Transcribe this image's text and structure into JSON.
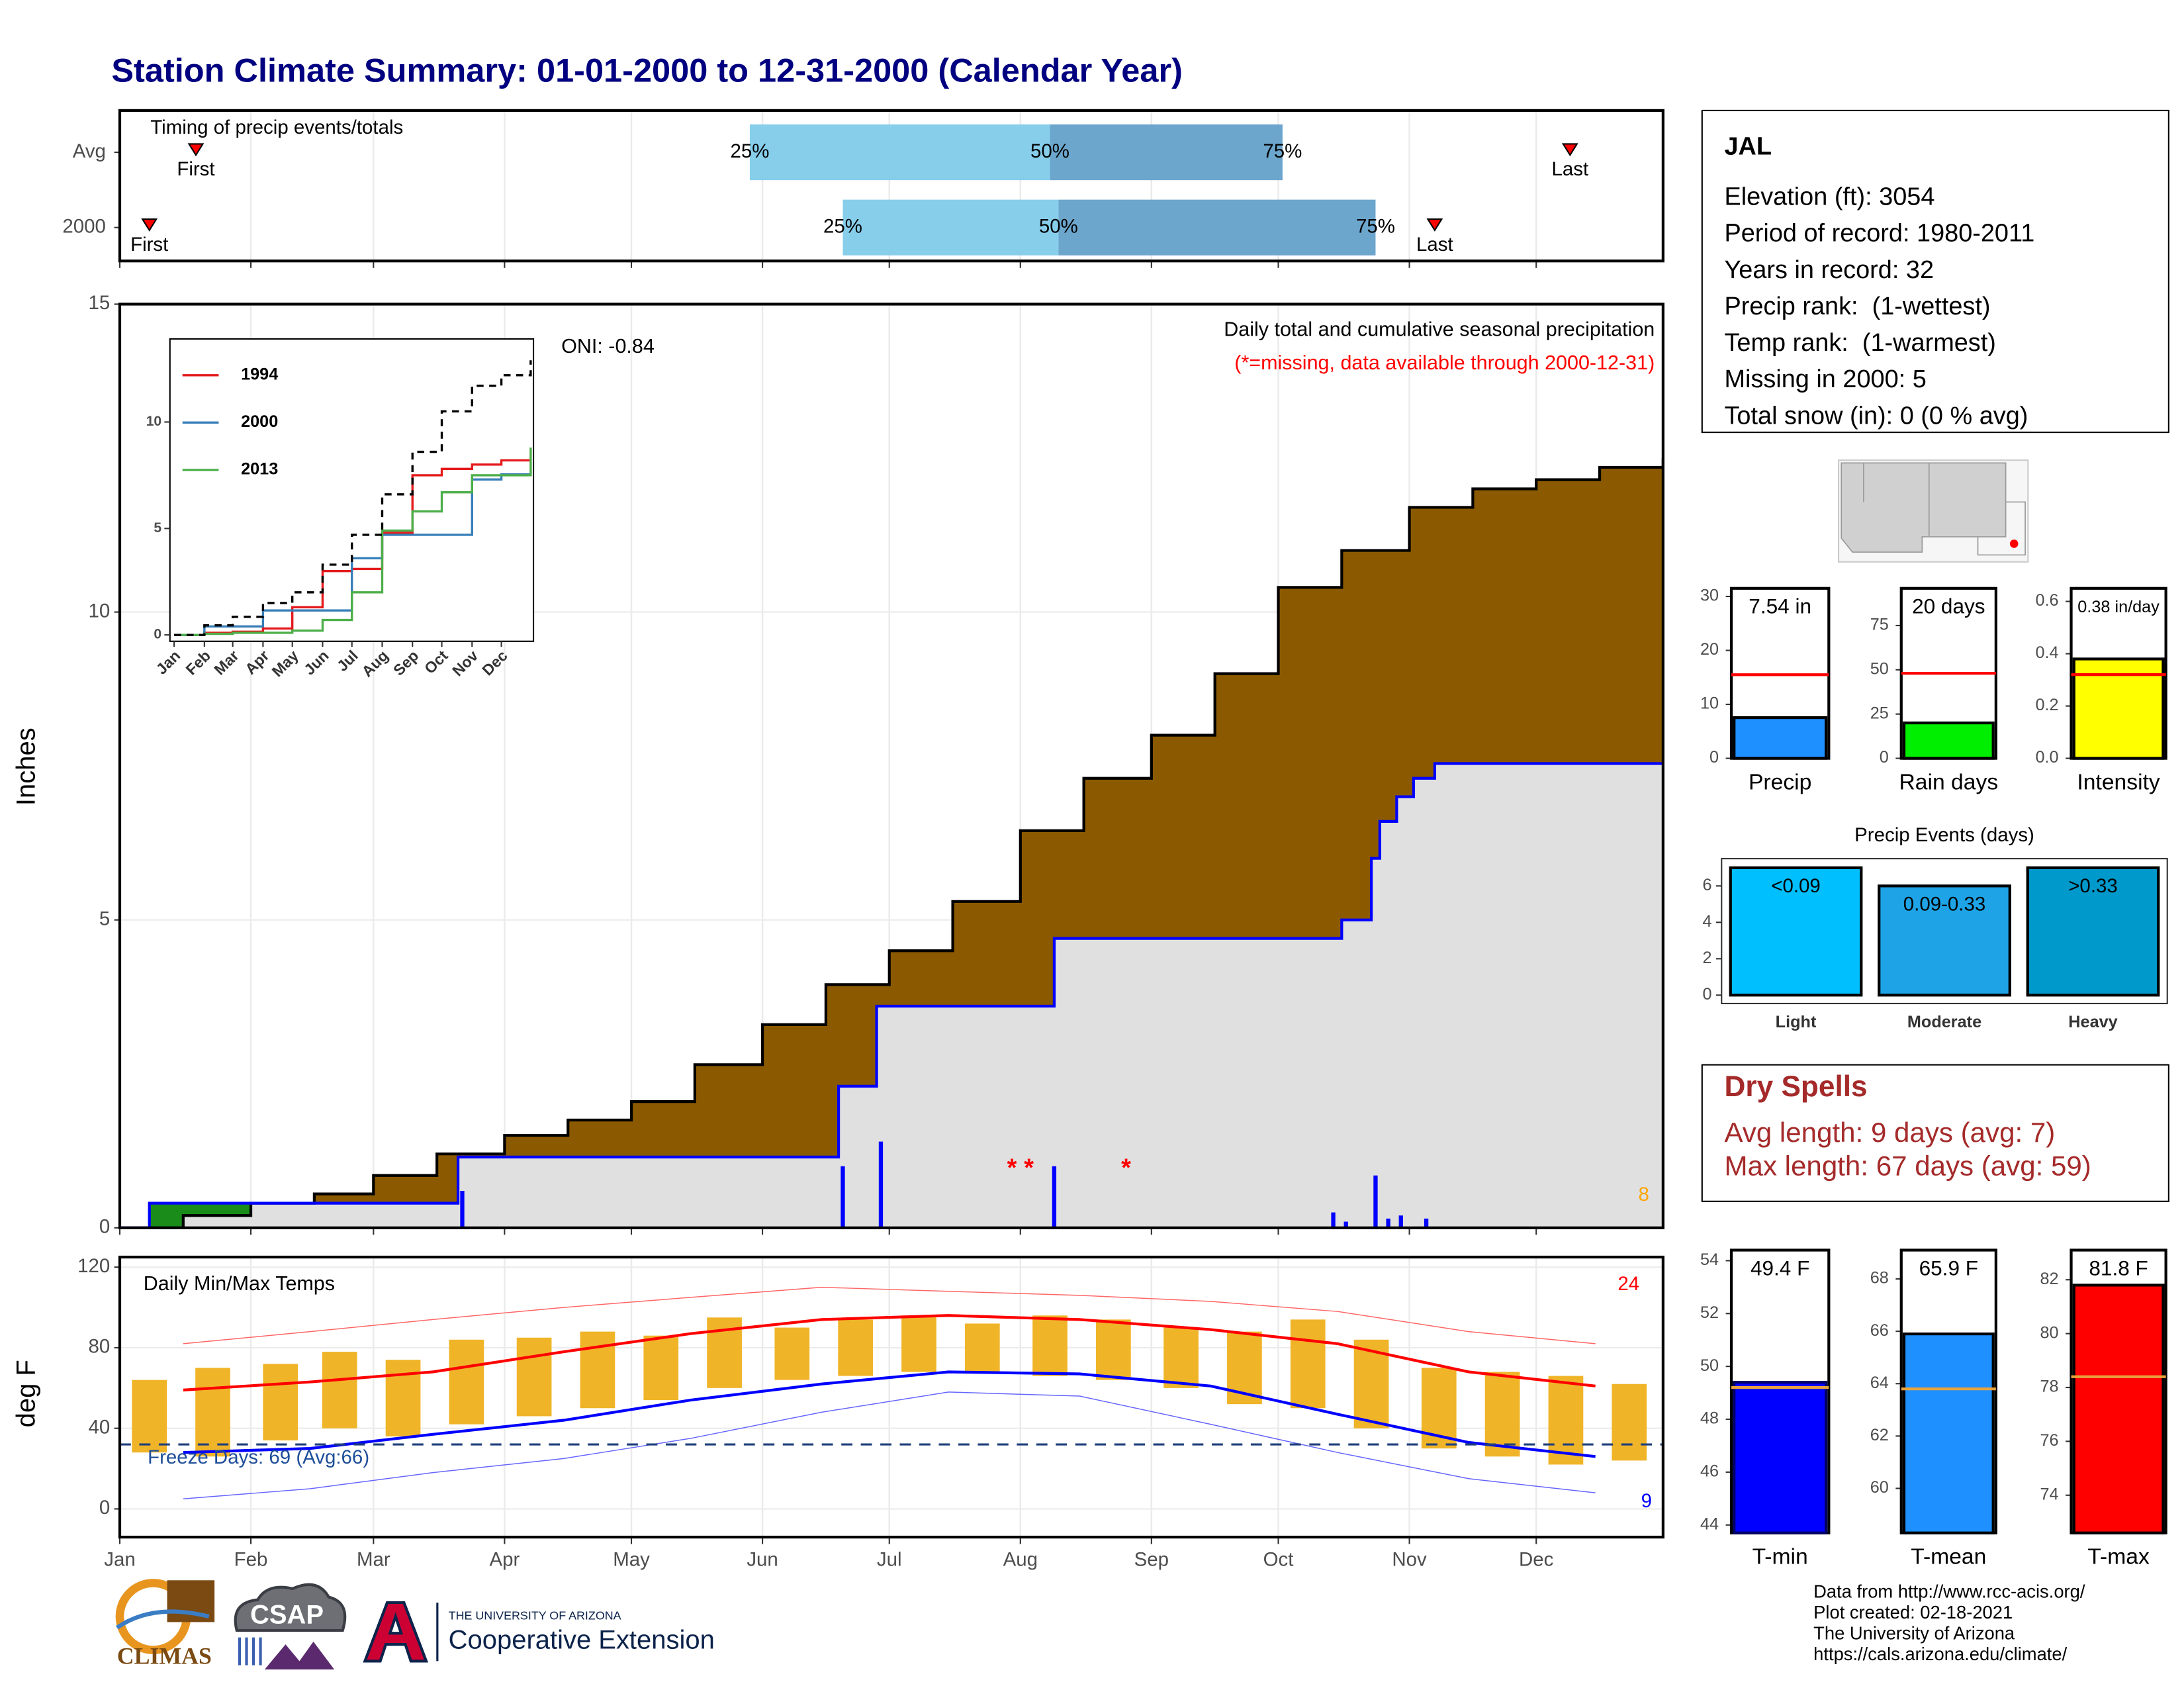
{
  "title": "Station Climate Summary: 01-01-2000 to 12-31-2000 (Calendar Year)",
  "station": {
    "name": "JAL",
    "details": [
      "Elevation (ft): 3054",
      "Period of record: 1980-2011",
      "Years in record: 32",
      "Precip rank:  (1-wettest)",
      "Temp rank:  (1-warmest)",
      "Missing in 2000: 5",
      "Total snow (in): 0 (0 % avg)"
    ]
  },
  "dry_spells": {
    "title": "Dry Spells",
    "lines": [
      "Avg length: 9 days (avg: 7)",
      "Max length: 67 days (avg: 59)"
    ]
  },
  "footer": [
    "Data from http://www.rcc-acis.org/",
    "Plot created: 02-18-2021",
    "The University of Arizona",
    "https://cals.arizona.edu/climate/"
  ],
  "logos": {
    "climas": "CLIMAS",
    "csap": "CSAP",
    "university": "THE UNIVERSITY OF ARIZONA",
    "extension": "Cooperative Extension"
  },
  "chart_data": [
    {
      "type": "timing",
      "title": "Timing of precip events/totals",
      "xlim": [
        0,
        365
      ],
      "xticks": [
        0,
        31,
        60,
        91,
        121,
        152,
        182,
        213,
        244,
        274,
        305,
        335
      ],
      "grid": true,
      "marker_labels": {
        "first": "First",
        "last": "Last",
        "q25": "25%",
        "q50": "50%",
        "q75": "75%"
      },
      "colors": [
        "#87ceeb",
        "#6ca6cd"
      ],
      "rows": [
        {
          "name": "Avg",
          "first": 18,
          "q25": 149,
          "q50": 220,
          "q75": 275,
          "last": 343
        },
        {
          "name": "2000",
          "first": 7,
          "q25": 171,
          "q50": 222,
          "q75": 297,
          "last": 311
        }
      ]
    },
    {
      "type": "cumulative",
      "title": "Daily total and cumulative seasonal precipitation",
      "subtitle": "(*=missing, data available through 2000-12-31)",
      "annotation": "ONI: -0.84",
      "corner_label": "8",
      "ylabel": "Inches",
      "xlim": [
        0,
        365
      ],
      "xticks": [
        0,
        31,
        60,
        91,
        121,
        152,
        182,
        213,
        244,
        274,
        305,
        335
      ],
      "ylim": [
        0,
        15
      ],
      "yticks": [
        0,
        5,
        10,
        15
      ],
      "grid": true,
      "series": [
        {
          "color": "#8b5a00",
          "line_color": "#000000",
          "x": [
            0,
            15,
            31,
            46,
            60,
            75,
            91,
            106,
            121,
            136,
            152,
            167,
            182,
            197,
            213,
            228,
            244,
            259,
            274,
            289,
            305,
            320,
            335,
            350,
            365
          ],
          "values": [
            0,
            0.2,
            0.4,
            0.55,
            0.85,
            1.2,
            1.5,
            1.75,
            2.05,
            2.65,
            3.3,
            3.95,
            4.5,
            5.3,
            6.45,
            7.3,
            8.0,
            9.0,
            10.4,
            11.0,
            11.7,
            12.0,
            12.15,
            12.35,
            12.5
          ]
        },
        {
          "color": "#e0e0e0",
          "line_color": "#0000ff",
          "above_color": "#1a8c1a",
          "x": [
            0,
            7,
            80,
            170,
            179,
            221,
            289,
            296,
            298,
            302,
            306,
            311,
            365
          ],
          "values": [
            0,
            0.4,
            1.15,
            2.3,
            3.6,
            4.7,
            5.0,
            6.0,
            6.6,
            7.0,
            7.3,
            7.54,
            7.54
          ]
        }
      ],
      "bars": {
        "color": "#0000ff",
        "x": [
          81,
          171,
          180,
          221,
          287,
          290,
          297,
          300,
          303,
          309
        ],
        "values": [
          0.6,
          1.0,
          1.4,
          1.0,
          0.25,
          0.1,
          0.85,
          0.15,
          0.2,
          0.15
        ]
      },
      "missing": {
        "symbol": "*",
        "color": "#ff0000",
        "x": [
          211,
          215,
          238
        ]
      }
    },
    {
      "type": "line",
      "legend": "top-left",
      "xlim": [
        0,
        365
      ],
      "ylim": [
        -0.3,
        13.9
      ],
      "yticks": [
        0,
        5,
        10
      ],
      "xticks": [
        {
          "value": 0,
          "label": "Jan"
        },
        {
          "value": 31,
          "label": "Feb"
        },
        {
          "value": 60,
          "label": "Mar"
        },
        {
          "value": 91,
          "label": "Apr"
        },
        {
          "value": 121,
          "label": "May"
        },
        {
          "value": 152,
          "label": "Jun"
        },
        {
          "value": 182,
          "label": "Jul"
        },
        {
          "value": 213,
          "label": "Aug"
        },
        {
          "value": 244,
          "label": "Sep"
        },
        {
          "value": 274,
          "label": "Oct"
        },
        {
          "value": 305,
          "label": "Nov"
        },
        {
          "value": 335,
          "label": "Dec"
        }
      ],
      "x": [
        0,
        31,
        60,
        91,
        121,
        152,
        182,
        213,
        244,
        274,
        305,
        335,
        365
      ],
      "series": [
        {
          "name": "1994",
          "color": "#e41a1c",
          "values": [
            0,
            0.1,
            0.15,
            0.3,
            1.3,
            3.0,
            3.1,
            4.8,
            7.5,
            7.8,
            8.0,
            8.2,
            8.2
          ]
        },
        {
          "name": "2000",
          "color": "#377eb8",
          "values": [
            0,
            0.4,
            0.4,
            1.15,
            1.15,
            1.15,
            3.6,
            4.7,
            4.7,
            4.7,
            7.3,
            7.54,
            7.54
          ]
        },
        {
          "name": "2013",
          "color": "#4daf4a",
          "values": [
            0,
            0.05,
            0.1,
            0.1,
            0.2,
            0.7,
            2.0,
            4.9,
            5.8,
            6.7,
            7.5,
            7.5,
            8.8
          ]
        },
        {
          "color": "#000000",
          "dash": true,
          "values": [
            0,
            0.45,
            0.85,
            1.5,
            2.0,
            3.3,
            4.7,
            6.6,
            8.6,
            10.5,
            11.7,
            12.2,
            12.9
          ]
        }
      ]
    },
    {
      "type": "temps",
      "title": "Daily Min/Max Temps",
      "ylabel": "deg F",
      "high_label": "24",
      "low_label": "9",
      "freeze": 32,
      "freeze_label": "Freeze Days: 69 (Avg:66)",
      "xlim": [
        0,
        365
      ],
      "ylim": [
        -14,
        125
      ],
      "yticks": [
        0,
        40,
        80,
        120
      ],
      "grid": true,
      "xticks": [
        {
          "value": 0,
          "label": "Jan"
        },
        {
          "value": 31,
          "label": "Feb"
        },
        {
          "value": 60,
          "label": "Mar"
        },
        {
          "value": 91,
          "label": "Apr"
        },
        {
          "value": 121,
          "label": "May"
        },
        {
          "value": 152,
          "label": "Jun"
        },
        {
          "value": 182,
          "label": "Jul"
        },
        {
          "value": 213,
          "label": "Aug"
        },
        {
          "value": 244,
          "label": "Sep"
        },
        {
          "value": 274,
          "label": "Oct"
        },
        {
          "value": 305,
          "label": "Nov"
        },
        {
          "value": 335,
          "label": "Dec"
        }
      ],
      "bars": {
        "color": "#f0b429",
        "x": [
          7,
          22,
          38,
          52,
          67,
          82,
          98,
          113,
          128,
          143,
          159,
          174,
          189,
          204,
          220,
          235,
          251,
          266,
          281,
          296,
          312,
          327,
          342,
          357
        ],
        "high": [
          64,
          70,
          72,
          78,
          74,
          84,
          85,
          88,
          86,
          95,
          90,
          94,
          96,
          92,
          96,
          94,
          90,
          88,
          94,
          84,
          70,
          68,
          66,
          62
        ],
        "low": [
          28,
          26,
          34,
          40,
          36,
          42,
          46,
          50,
          54,
          60,
          64,
          66,
          68,
          68,
          66,
          64,
          60,
          52,
          50,
          40,
          30,
          26,
          22,
          24
        ]
      },
      "line_x": [
        15,
        45,
        74,
        105,
        135,
        166,
        196,
        227,
        258,
        288,
        319,
        349
      ],
      "lines": [
        {
          "color": "#ff6666",
          "width": 0.7,
          "values": [
            82,
            88,
            94,
            100,
            105,
            110,
            108,
            106,
            103,
            98,
            88,
            82
          ]
        },
        {
          "color": "#6666ff",
          "width": 0.7,
          "values": [
            5,
            10,
            18,
            25,
            35,
            48,
            58,
            56,
            42,
            28,
            15,
            8
          ]
        },
        {
          "color": "#ff0000",
          "width": 2,
          "values": [
            59,
            63,
            68,
            78,
            87,
            94,
            96,
            94,
            89,
            82,
            68,
            61
          ]
        },
        {
          "color": "#0000ff",
          "width": 2,
          "values": [
            28,
            30,
            37,
            44,
            54,
            62,
            68,
            67,
            61,
            47,
            33,
            26
          ]
        }
      ]
    },
    {
      "type": "gauge",
      "categories": [
        "Precip"
      ],
      "values": [
        7.54
      ],
      "value_labels": [
        "7.54 in"
      ],
      "average": 15.5,
      "color": "#1e90ff",
      "edge_color": "#000000",
      "average_color": "#ff0000",
      "ylim": [
        0,
        31.5
      ],
      "yticks": [
        0,
        10,
        20,
        30
      ]
    },
    {
      "type": "gauge",
      "categories": [
        "Rain days"
      ],
      "values": [
        20
      ],
      "value_labels": [
        "20 days"
      ],
      "average": 48,
      "color": "#00ee00",
      "edge_color": "#000000",
      "average_color": "#ff0000",
      "ylim": [
        0,
        96
      ],
      "yticks": [
        0,
        25,
        50,
        75
      ]
    },
    {
      "type": "gauge",
      "categories": [
        "Intensity"
      ],
      "values": [
        0.38
      ],
      "value_labels": [
        "0.38 in/day"
      ],
      "average": 0.32,
      "color": "#ffff00",
      "edge_color": "#000000",
      "average_color": "#ff0000",
      "ylim": [
        0,
        0.65
      ],
      "yticks": [
        {
          "value": 0,
          "label": "0.0"
        },
        0.2,
        0.4,
        0.6
      ]
    },
    {
      "type": "bar",
      "title": "Precip Events (days)",
      "categories": [
        "Light",
        "Moderate",
        "Heavy"
      ],
      "bin_labels": [
        "<0.09",
        "0.09-0.33",
        ">0.33"
      ],
      "values": [
        7,
        6,
        7
      ],
      "colors": [
        "#00bfff",
        "#1ea3e6",
        "#0099cc"
      ],
      "ylim": [
        -0.46,
        7.5
      ],
      "yticks": [
        0,
        2,
        4,
        6
      ]
    },
    {
      "type": "gauge",
      "categories": [
        "T-min"
      ],
      "values": [
        49.4
      ],
      "value_labels": [
        "49.4 F"
      ],
      "average": 49.2,
      "color": "#0000ff",
      "edge_color": "#000066",
      "average_color": "#e8a33d",
      "ylim": [
        43.7,
        54.4
      ],
      "yticks": [
        44,
        46,
        48,
        50,
        52,
        54
      ]
    },
    {
      "type": "gauge",
      "categories": [
        "T-mean"
      ],
      "values": [
        65.9
      ],
      "value_labels": [
        "65.9 F"
      ],
      "average": 63.8,
      "color": "#1e90ff",
      "edge_color": "#000000",
      "average_color": "#e8a33d",
      "ylim": [
        58.3,
        69.1
      ],
      "yticks": [
        60,
        62,
        64,
        66,
        68
      ]
    },
    {
      "type": "gauge",
      "categories": [
        "T-max"
      ],
      "values": [
        81.8
      ],
      "value_labels": [
        "81.8 F"
      ],
      "average": 78.4,
      "color": "#ff0000",
      "edge_color": "#000000",
      "average_color": "#e8a33d",
      "ylim": [
        72.6,
        83.1
      ],
      "yticks": [
        74,
        76,
        78,
        80,
        82
      ]
    }
  ]
}
